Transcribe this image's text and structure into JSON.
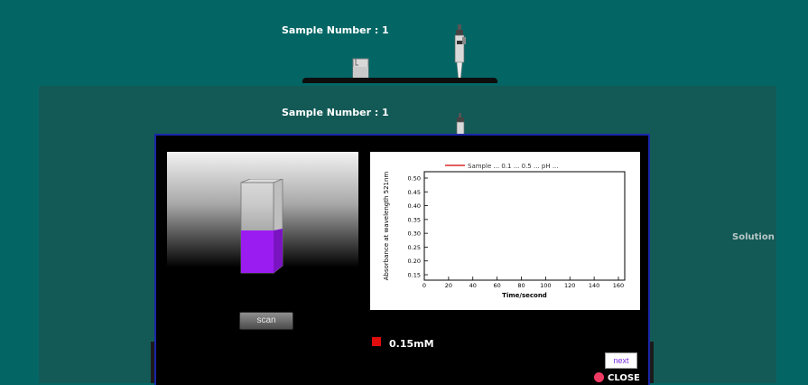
{
  "background": {
    "sample_label": "Sample Number : 1"
  },
  "overlay": {
    "sample_label": "Sample Number : 1",
    "side_label": "Solution"
  },
  "graph": {
    "legend": "Sample ... 0.1 ... 0.5 ... pH ...",
    "ylabel": "Absorbance at wavelength 521nm",
    "xlabel": "Time/second",
    "yticks": [
      "0.50",
      "0.45",
      "0.40",
      "0.35",
      "0.30",
      "0.25",
      "0.20",
      "0.15"
    ],
    "xticks": [
      "0",
      "20",
      "40",
      "60",
      "80",
      "100",
      "120",
      "140",
      "160"
    ]
  },
  "controls": {
    "scan_label": "scan",
    "next_label": "next",
    "close_label": "CLOSE"
  },
  "concentration": {
    "value": "0.15mM"
  },
  "colors": {
    "teal": "#036665",
    "solution": "#9b1cf0",
    "legend_line": "#d00000",
    "close_dot": "#ef3b63"
  },
  "icons": [
    "pipette-icon",
    "cuvette-icon",
    "close-dot-icon",
    "concentration-swatch-icon"
  ]
}
